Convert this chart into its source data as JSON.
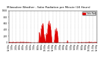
{
  "title": "Milwaukee Weather - Solar Radiation per Minute (24 Hours)",
  "background_color": "#ffffff",
  "fill_color": "#dd0000",
  "line_color": "#dd0000",
  "grid_color": "#bbbbbb",
  "legend_color": "#dd0000",
  "ylim": [
    0,
    1000
  ],
  "xlim": [
    0,
    1440
  ],
  "num_points": 1440,
  "title_fontsize": 3.0,
  "tick_fontsize": 2.2,
  "ytick_positions": [
    0,
    200,
    400,
    600,
    800,
    1000
  ],
  "xtick_step_minutes": 60
}
